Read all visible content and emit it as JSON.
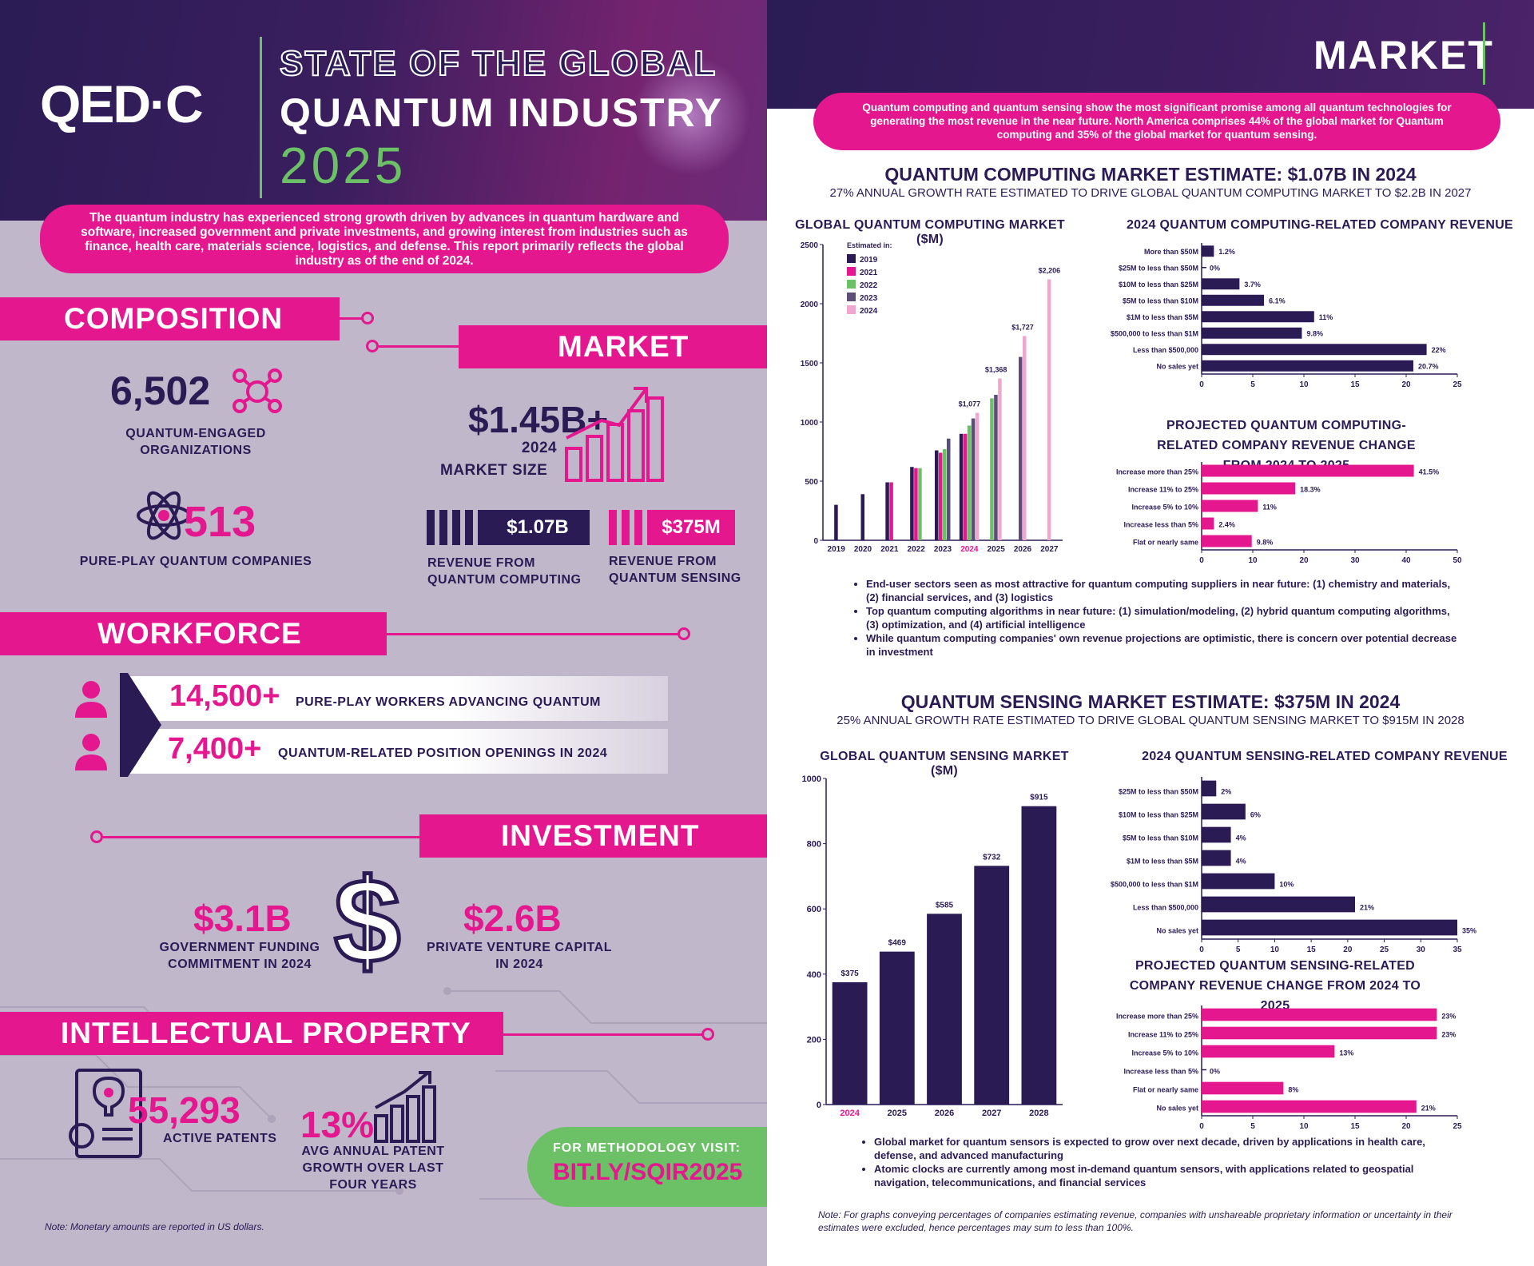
{
  "left": {
    "logo": "QED·C",
    "title_line1": "STATE OF THE GLOBAL",
    "title_line2": "QUANTUM INDUSTRY",
    "title_year": "2025",
    "intro": "The quantum industry has experienced strong growth driven by advances in quantum hardware and software, increased government and private investments, and growing interest from industries such as finance, health care, materials science, logistics, and defense. This report primarily reflects the global industry as of the end of 2024.",
    "composition": {
      "heading": "COMPOSITION",
      "orgs_value": "6,502",
      "orgs_label": "QUANTUM-ENGAGED ORGANIZATIONS",
      "pureplay_value": "513",
      "pureplay_label": "PURE-PLAY QUANTUM COMPANIES"
    },
    "market": {
      "heading": "MARKET",
      "size_value": "$1.45B+",
      "size_label_1": "2024",
      "size_label_2": "MARKET SIZE",
      "qc_value": "$1.07B",
      "qc_label": "REVENUE FROM QUANTUM COMPUTING",
      "qs_value": "$375M",
      "qs_label": "REVENUE FROM QUANTUM SENSING"
    },
    "workforce": {
      "heading": "WORKFORCE",
      "workers_value": "14,500+",
      "workers_label": "PURE-PLAY WORKERS ADVANCING QUANTUM",
      "openings_value": "7,400+",
      "openings_label": "QUANTUM-RELATED POSITION OPENINGS IN 2024"
    },
    "investment": {
      "heading": "INVESTMENT",
      "gov_value": "$3.1B",
      "gov_label": "GOVERNMENT FUNDING COMMITMENT IN 2024",
      "vc_value": "$2.6B",
      "vc_label": "PRIVATE VENTURE CAPITAL IN 2024"
    },
    "ip": {
      "heading": "INTELLECTUAL PROPERTY",
      "patents_value": "55,293",
      "patents_label": "ACTIVE PATENTS",
      "growth_value": "13%",
      "growth_label": "AVG ANNUAL PATENT GROWTH OVER LAST FOUR YEARS"
    },
    "methodology_label": "FOR METHODOLOGY VISIT:",
    "methodology_link": "BIT.LY/SQIR2025",
    "note": "Note: Monetary amounts are reported in US dollars."
  },
  "right": {
    "heading": "MARKET",
    "intro": "Quantum computing and quantum sensing show the most significant promise among all quantum technologies for generating the most revenue in the near future. North America comprises 44% of the global market for Quantum computing and 35% of the global market for quantum sensing.",
    "qc_title": "QUANTUM COMPUTING MARKET ESTIMATE: $1.07B IN 2024",
    "qc_subtitle": "27% ANNUAL GROWTH RATE ESTIMATED TO DRIVE GLOBAL QUANTUM COMPUTING MARKET TO $2.2B IN 2027",
    "qs_title": "QUANTUM SENSING MARKET ESTIMATE: $375M IN 2024",
    "qs_subtitle": "25% ANNUAL GROWTH RATE ESTIMATED TO DRIVE GLOBAL QUANTUM SENSING MARKET TO $915M IN 2028",
    "qc_bullets": [
      "End-user sectors seen as most attractive for quantum computing suppliers in near future: (1) chemistry and materials, (2) financial services, and (3) logistics",
      "Top quantum computing algorithms in near future: (1) simulation/modeling, (2) hybrid quantum computing algorithms, (3) optimization, and (4) artificial intelligence",
      "While quantum computing companies' own revenue projections are optimistic, there is concern over potential decrease in investment"
    ],
    "qs_bullets": [
      "Global market for quantum sensors is expected to grow over next decade, driven by applications in health care, defense, and advanced manufacturing",
      "Atomic clocks are currently among most in-demand quantum sensors, with applications related to geospatial navigation, telecommunications, and financial services"
    ],
    "note": "Note: For graphs conveying percentages of companies estimating revenue, companies with unshareable proprietary information or uncertainty in their estimates were excluded, hence percentages may sum to less than 100%."
  },
  "colors": {
    "navy": "#2a1b55",
    "pink": "#e4178f",
    "green": "#6cc066",
    "lavender": "#c0b7ca",
    "light_pink": "#f0a6cf",
    "gray_purple": "#5b4e78"
  },
  "chart_data": [
    {
      "id": "qc_market",
      "type": "bar",
      "title": "GLOBAL QUANTUM COMPUTING MARKET ($M)",
      "legend_title": "Estimated in:",
      "categories": [
        "2019",
        "2020",
        "2021",
        "2022",
        "2023",
        "2024",
        "2025",
        "2026",
        "2027"
      ],
      "highlight_category": "2024",
      "ylim": [
        0,
        2500
      ],
      "yticks": [
        0,
        500,
        1000,
        1500,
        2000,
        2500
      ],
      "series": [
        {
          "name": "2019",
          "color": "#2a1b55",
          "values": [
            300,
            390,
            490,
            620,
            760,
            900,
            null,
            null,
            null
          ]
        },
        {
          "name": "2021",
          "color": "#e4178f",
          "values": [
            null,
            null,
            490,
            610,
            740,
            900,
            null,
            null,
            null
          ]
        },
        {
          "name": "2022",
          "color": "#6cc066",
          "values": [
            null,
            null,
            null,
            610,
            770,
            970,
            1200,
            null,
            null
          ]
        },
        {
          "name": "2023",
          "color": "#5b4e78",
          "values": [
            null,
            null,
            null,
            null,
            860,
            1030,
            1230,
            1550,
            null
          ]
        },
        {
          "name": "2024",
          "color": "#f0a6cf",
          "values": [
            null,
            null,
            null,
            null,
            null,
            1077,
            1368,
            1727,
            2206
          ]
        }
      ],
      "data_labels": [
        {
          "category": "2024",
          "label": "$1,077",
          "value": 1077
        },
        {
          "category": "2025",
          "label": "$1,368",
          "value": 1368
        },
        {
          "category": "2026",
          "label": "$1,727",
          "value": 1727
        },
        {
          "category": "2027",
          "label": "$2,206",
          "value": 2206
        }
      ]
    },
    {
      "id": "qc_company_revenue",
      "type": "bar",
      "orientation": "horizontal",
      "title": "2024 QUANTUM COMPUTING-RELATED COMPANY REVENUE",
      "categories": [
        "More than $50M",
        "$25M to less than $50M",
        "$10M to less than $25M",
        "$5M to less than $10M",
        "$1M to less than $5M",
        "$500,000 to less than $1M",
        "Less than $500,000",
        "No sales yet"
      ],
      "values": [
        1.2,
        0,
        3.7,
        6.1,
        11,
        9.8,
        22,
        20.7
      ],
      "labels": [
        "1.2%",
        "0%",
        "3.7%",
        "6.1%",
        "11%",
        "9.8%",
        "22%",
        "20.7%"
      ],
      "color": "#2a1b55",
      "xlim": [
        0,
        25
      ],
      "xticks": [
        0,
        5,
        10,
        15,
        20,
        25
      ]
    },
    {
      "id": "qc_projected_change",
      "type": "bar",
      "orientation": "horizontal",
      "title": "PROJECTED QUANTUM COMPUTING-RELATED COMPANY REVENUE CHANGE FROM 2024 TO 2025",
      "categories": [
        "Increase more than 25%",
        "Increase 11% to 25%",
        "Increase 5% to 10%",
        "Increase less than 5%",
        "Flat or nearly same"
      ],
      "values": [
        41.5,
        18.3,
        11,
        2.4,
        9.8
      ],
      "labels": [
        "41.5%",
        "18.3%",
        "11%",
        "2.4%",
        "9.8%"
      ],
      "color": "#e4178f",
      "xlim": [
        0,
        50
      ],
      "xticks": [
        0,
        10,
        20,
        30,
        40,
        50
      ]
    },
    {
      "id": "qs_market",
      "type": "bar",
      "title": "GLOBAL QUANTUM SENSING MARKET ($M)",
      "categories": [
        "2024",
        "2025",
        "2026",
        "2027",
        "2028"
      ],
      "highlight_category": "2024",
      "values": [
        375,
        469,
        585,
        732,
        915
      ],
      "labels": [
        "$375",
        "$469",
        "$585",
        "$732",
        "$915"
      ],
      "color": "#2a1b55",
      "ylim": [
        0,
        1000
      ],
      "yticks": [
        0,
        200,
        400,
        600,
        800,
        1000
      ]
    },
    {
      "id": "qs_company_revenue",
      "type": "bar",
      "orientation": "horizontal",
      "title": "2024 QUANTUM SENSING-RELATED COMPANY REVENUE",
      "categories": [
        "$25M to less than $50M",
        "$10M to less than $25M",
        "$5M to less than $10M",
        "$1M to less than $5M",
        "$500,000 to less than $1M",
        "Less than $500,000",
        "No sales yet"
      ],
      "values": [
        2,
        6,
        4,
        4,
        10,
        21,
        35
      ],
      "labels": [
        "2%",
        "6%",
        "4%",
        "4%",
        "10%",
        "21%",
        "35%"
      ],
      "color": "#2a1b55",
      "xlim": [
        0,
        35
      ],
      "xticks": [
        0,
        5,
        10,
        15,
        20,
        25,
        30,
        35
      ]
    },
    {
      "id": "qs_projected_change",
      "type": "bar",
      "orientation": "horizontal",
      "title": "PROJECTED QUANTUM SENSING-RELATED COMPANY REVENUE CHANGE FROM 2024 TO 2025",
      "categories": [
        "Increase more than 25%",
        "Increase 11% to 25%",
        "Increase 5% to 10%",
        "Increase less than 5%",
        "Flat or nearly same",
        "No sales yet"
      ],
      "values": [
        23,
        23,
        13,
        0,
        8,
        21
      ],
      "labels": [
        "23%",
        "23%",
        "13%",
        "0%",
        "8%",
        "21%"
      ],
      "color": "#e4178f",
      "xlim": [
        0,
        25
      ],
      "xticks": [
        0,
        5,
        10,
        15,
        20,
        25
      ]
    }
  ]
}
